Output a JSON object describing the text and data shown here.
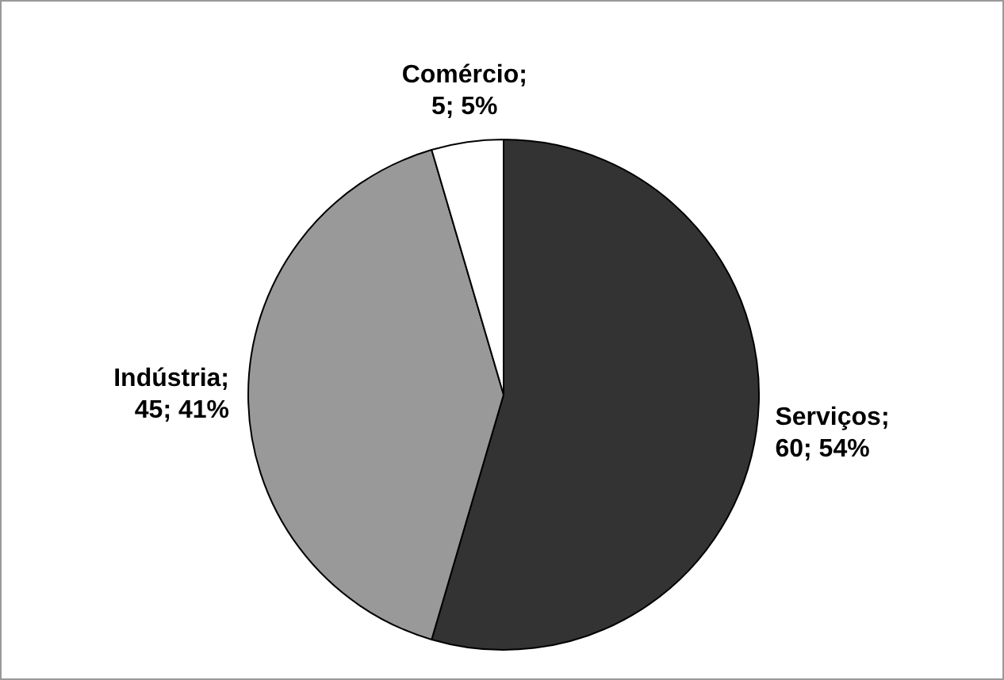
{
  "chart_data": {
    "type": "pie",
    "categories": [
      "Serviços",
      "Indústria",
      "Comércio"
    ],
    "values": [
      60,
      45,
      5
    ],
    "colors": [
      "#333333",
      "#999999",
      "#ffffff"
    ],
    "value_labels": [
      "; 60; 54%",
      "; 45; 41%",
      "; 5; 5%"
    ],
    "legend": false
  }
}
